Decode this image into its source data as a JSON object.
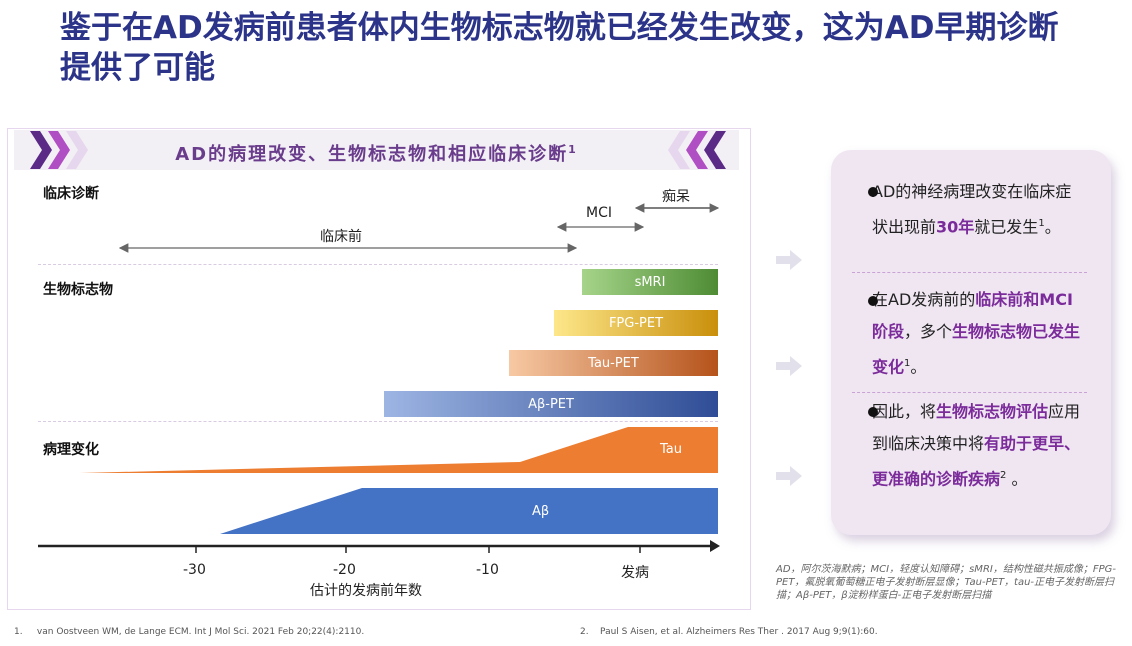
{
  "title": "鉴于在AD发病前患者体内生物标志物就已经发生改变，这为AD早期诊断提供了可能",
  "banner": {
    "text": "AD的病理改变、生物标志物和相应临床诊断",
    "sup": "1"
  },
  "sections": {
    "clinical": "临床诊断",
    "biomarkers": "生物标志物",
    "pathology": "病理变化"
  },
  "clinical_stages": {
    "preclinical": "临床前",
    "mci": "MCI",
    "dementia": "痴呆"
  },
  "biomarker_bars": [
    {
      "label": "sMRI",
      "color_from": "#a6d48a",
      "color_to": "#4e8c34"
    },
    {
      "label": "FPG-PET",
      "color_from": "#fde78a",
      "color_to": "#c98f0b"
    },
    {
      "label": "Tau-PET",
      "color_from": "#f7c9a4",
      "color_to": "#b5531b"
    },
    {
      "label": "Aβ-PET",
      "color_from": "#9db5e3",
      "color_to": "#2f4d96"
    }
  ],
  "pathology_bars": [
    {
      "label": "Tau",
      "color": "#ed7d31"
    },
    {
      "label": "Aβ",
      "color": "#4472c4"
    }
  ],
  "axis": {
    "ticks": [
      "-30",
      "-20",
      "-10",
      "发病"
    ],
    "label": "估计的发病前年数"
  },
  "callout": {
    "item1": {
      "pre": "AD的神经病理改变在临床症状出现前",
      "hl": "30年",
      "post": "就已发生",
      "sup": "1",
      "end": "。"
    },
    "item2": {
      "pre": "在AD发病前的",
      "hl1": "临床前和MCI阶段",
      "mid": "，多个",
      "hl2": "生物标志物已发生变化",
      "sup": "1",
      "end": "。"
    },
    "item3": {
      "pre": "因此，将",
      "hl1": "生物标志物评估",
      "mid": "应用到临床决策中将",
      "hl2": "有助于更早、更准确的诊断疾病",
      "sup": "2",
      "end": " 。"
    }
  },
  "abbreviations": "AD，阿尔茨海默病；MCI，轻度认知障碍；sMRI，结构性磁共振成像；FPG-PET，氟脱氧葡萄糖正电子发射断层显像；Tau-PET，tau-正电子发射断层扫描；Aβ-PET，β淀粉样蛋白-正电子发射断层扫描",
  "references": [
    {
      "num": "1.",
      "text": "van Oostveen WM, de Lange ECM. Int J Mol Sci. 2021 Feb 20;22(4):2110."
    },
    {
      "num": "2.",
      "text": "Paul S Aisen, et al. Alzheimers Res Ther . 2017 Aug 9;9(1):60."
    }
  ],
  "colors": {
    "title": "#2b3488",
    "accent": "#7b2b9a",
    "banner_text": "#6a3d8c",
    "tau": "#ed7d31",
    "abeta": "#4472c4"
  }
}
